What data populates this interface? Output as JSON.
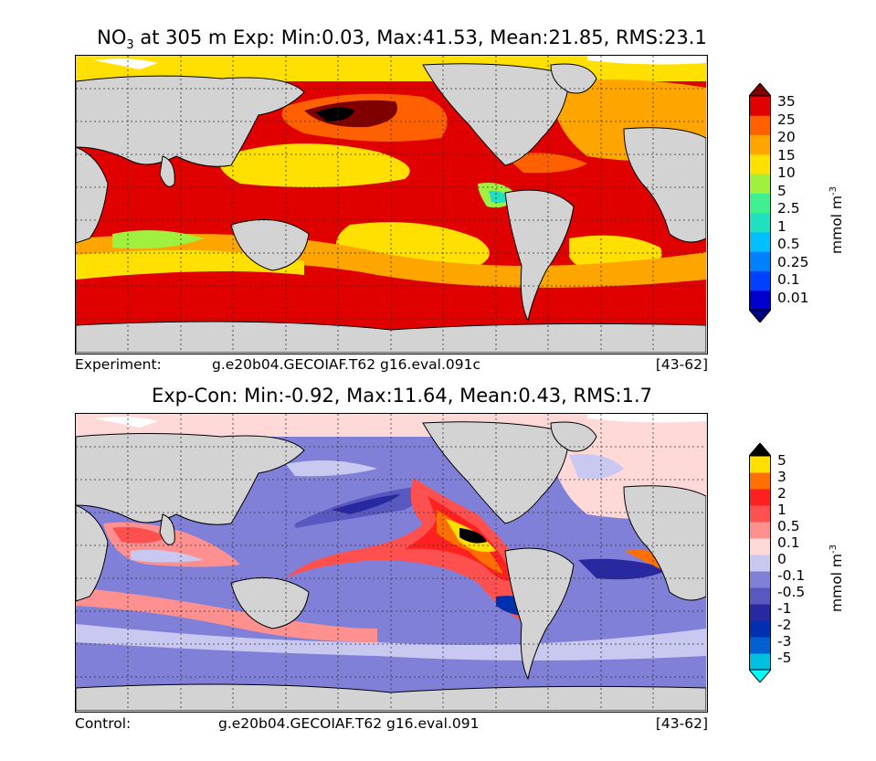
{
  "top_panel": {
    "title_var": "NO",
    "title_sub": "3",
    "title_rest": " at 305 m Exp: Min:0.03, Max:41.53, Mean:21.85, RMS:23.1",
    "footer_left": "Experiment:",
    "footer_case": "g.e20b04.GECOIAF.T62 g16.eval.091c",
    "footer_years": "[43-62]",
    "colorbar": {
      "units": "mmol m",
      "units_exp": "-3",
      "ticks": [
        "35",
        "25",
        "20",
        "15",
        "10",
        "5",
        "2.5",
        "1",
        "0.5",
        "0.25",
        "0.1",
        "0.01"
      ],
      "colors": [
        "#000080",
        "#0000cd",
        "#0040ff",
        "#0080ff",
        "#00bfff",
        "#20e0c0",
        "#40f090",
        "#a0f040",
        "#ffe000",
        "#ffa500",
        "#ff6000",
        "#e00000",
        "#800000"
      ]
    }
  },
  "bottom_panel": {
    "title": "Exp-Con: Min:-0.92, Max:11.64, Mean:0.43, RMS:1.7",
    "footer_left": "Control:",
    "footer_case": "g.e20b04.GECOIAF.T62 g16.eval.091",
    "footer_years": "[43-62]",
    "colorbar": {
      "units": "mmol m",
      "units_exp": "-3",
      "ticks": [
        "5",
        "3",
        "2",
        "1",
        "0.5",
        "0.1",
        "0",
        "-0.1",
        "-0.5",
        "-1",
        "-2",
        "-3",
        "-5"
      ],
      "colors": [
        "#00ffff",
        "#00c0e0",
        "#0060d0",
        "#0030b0",
        "#2828a0",
        "#5858c0",
        "#8080d8",
        "#c8c8f0",
        "#ffd8d8",
        "#ff9090",
        "#ff5050",
        "#ff2020",
        "#ff7000",
        "#ffe000",
        "#000000"
      ]
    }
  },
  "chart_data": [
    {
      "type": "heatmap",
      "title": "NO3 at 305 m Exp: Min:0.03, Max:41.53, Mean:21.85, RMS:23.1",
      "stats": {
        "min": 0.03,
        "max": 41.53,
        "mean": 21.85,
        "rms": 23.1
      },
      "levels": [
        0.01,
        0.1,
        0.25,
        0.5,
        1,
        2.5,
        5,
        10,
        15,
        20,
        25,
        35
      ],
      "units": "mmol m-3"
    },
    {
      "type": "heatmap",
      "title": "Exp-Con: Min:-0.92, Max:11.64, Mean:0.43, RMS:1.7",
      "stats": {
        "min": -0.92,
        "max": 11.64,
        "mean": 0.43,
        "rms": 1.7
      },
      "levels": [
        -5,
        -3,
        -2,
        -1,
        -0.5,
        -0.1,
        0,
        0.1,
        0.5,
        1,
        2,
        3,
        5
      ],
      "units": "mmol m-3"
    }
  ]
}
